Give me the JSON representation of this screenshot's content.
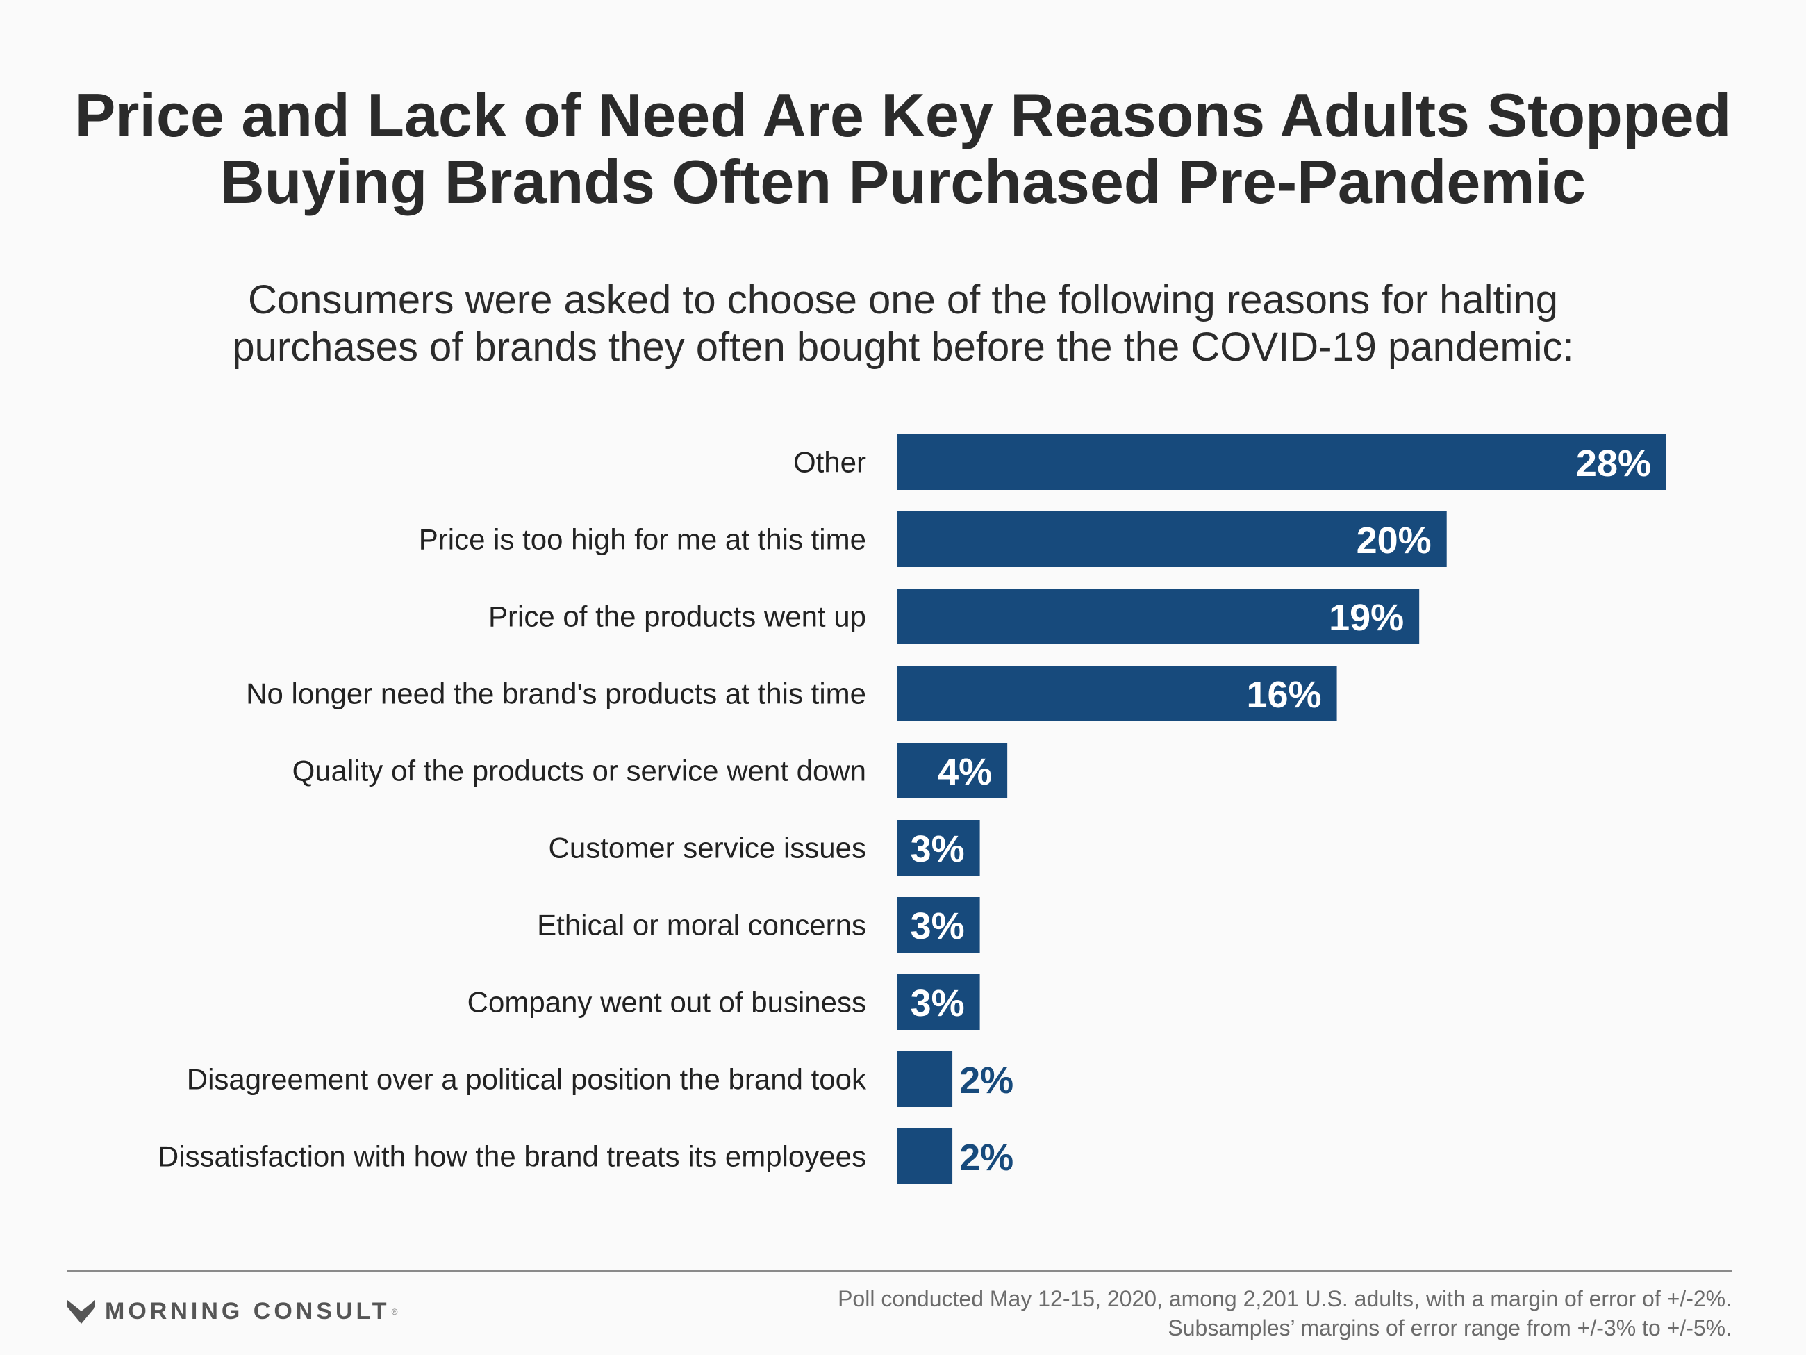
{
  "header": {
    "title_line1": "Price and Lack of Need Are Key Reasons Adults Stopped",
    "title_line2": "Buying Brands Often Purchased Pre-Pandemic",
    "subtitle_line1": "Consumers were asked to choose one of the following reasons for halting",
    "subtitle_line2": "purchases of brands they often bought before the the COVID-19 pandemic:"
  },
  "chart_data": {
    "type": "bar",
    "orientation": "horizontal",
    "categories": [
      "Other",
      "Price is too high for me at this time",
      "Price of the products went up",
      "No longer need the brand's products at this time",
      "Quality of the products or service went down",
      "Customer service issues",
      "Ethical or moral concerns",
      "Company went out of business",
      "Disagreement over a political position the brand took",
      "Dissatisfaction with how the brand treats its employees"
    ],
    "values": [
      28,
      20,
      19,
      16,
      4,
      3,
      3,
      3,
      2,
      2
    ],
    "value_labels": [
      "28%",
      "20%",
      "19%",
      "16%",
      "4%",
      "3%",
      "3%",
      "3%",
      "2%",
      "2%"
    ],
    "unit": "%",
    "bar_color": "#174a7c",
    "xlim": [
      0,
      28
    ],
    "grid": false,
    "legend": "none"
  },
  "footer": {
    "brand": "MORNING CONSULT",
    "brand_mark": "®",
    "brand_icon": "morning-consult-logo-icon",
    "note_line1": "Poll conducted May 12-15, 2020, among 2,201 U.S. adults, with a margin of error of +/-2%.",
    "note_line2": "Subsamples’ margins of error range from +/-3% to +/-5%."
  }
}
